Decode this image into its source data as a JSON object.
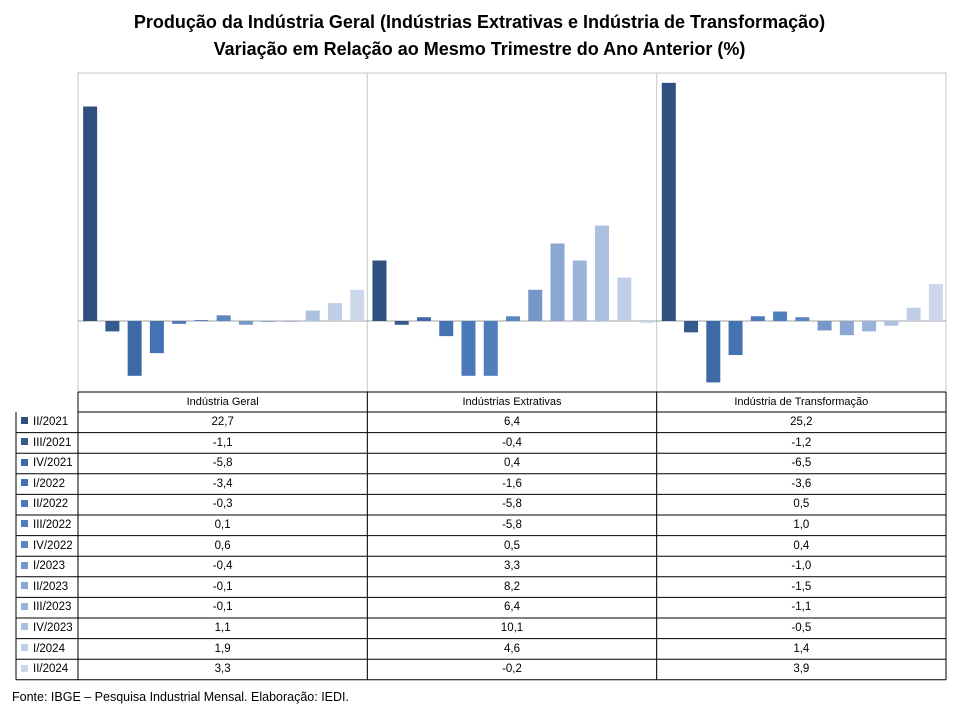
{
  "title": "Produção da Indústria Geral (Indústrias Extrativas e Indústria de Transformação)",
  "subtitle": "Variação em Relação ao Mesmo Trimestre do Ano Anterior (%)",
  "footer": "Fonte: IBGE – Pesquisa Industrial Mensal. Elaboração: IEDI.",
  "chart_data": {
    "type": "bar",
    "title": "Produção da Indústria Geral (Indústrias Extrativas e Indústria de Transformação)",
    "subtitle": "Variação em Relação ao Mesmo Trimestre do Ano Anterior (%)",
    "categories": [
      "Indústria Geral",
      "Indústrias Extrativas",
      "Indústria de Transformação"
    ],
    "series": [
      {
        "name": "II/2021",
        "color": "#2f4f7f",
        "values": [
          22.7,
          6.4,
          25.2
        ],
        "labels": [
          "22,7",
          "6,4",
          "25,2"
        ]
      },
      {
        "name": "III/2021",
        "color": "#355a8e",
        "values": [
          -1.1,
          -0.4,
          -1.2
        ],
        "labels": [
          "-1,1",
          "-0,4",
          "-1,2"
        ]
      },
      {
        "name": "IV/2021",
        "color": "#3d6aa6",
        "values": [
          -5.8,
          0.4,
          -6.5
        ],
        "labels": [
          "-5,8",
          "0,4",
          "-6,5"
        ]
      },
      {
        "name": "I/2022",
        "color": "#4572b3",
        "values": [
          -3.4,
          -1.6,
          -3.6
        ],
        "labels": [
          "-3,4",
          "-1,6",
          "-3,6"
        ]
      },
      {
        "name": "II/2022",
        "color": "#4a78b8",
        "values": [
          -0.3,
          -5.8,
          0.5
        ],
        "labels": [
          "-0,3",
          "-5,8",
          "0,5"
        ]
      },
      {
        "name": "III/2022",
        "color": "#4f7ebd",
        "values": [
          0.1,
          -5.8,
          1.0
        ],
        "labels": [
          "0,1",
          "-5,8",
          "1,0"
        ]
      },
      {
        "name": "IV/2022",
        "color": "#5b86c1",
        "values": [
          0.6,
          0.5,
          0.4
        ],
        "labels": [
          "0,6",
          "0,5",
          "0,4"
        ]
      },
      {
        "name": "I/2023",
        "color": "#7597c9",
        "values": [
          -0.4,
          3.3,
          -1.0
        ],
        "labels": [
          "-0,4",
          "3,3",
          "-1,0"
        ]
      },
      {
        "name": "II/2023",
        "color": "#8aa6d1",
        "values": [
          -0.1,
          8.2,
          -1.5
        ],
        "labels": [
          "-0,1",
          "8,2",
          "-1,5"
        ]
      },
      {
        "name": "III/2023",
        "color": "#9bb3d8",
        "values": [
          -0.1,
          6.4,
          -1.1
        ],
        "labels": [
          "-0,1",
          "6,4",
          "-1,1"
        ]
      },
      {
        "name": "IV/2023",
        "color": "#acc0df",
        "values": [
          1.1,
          10.1,
          -0.5
        ],
        "labels": [
          "1,1",
          "10,1",
          "-0,5"
        ]
      },
      {
        "name": "I/2024",
        "color": "#c0cfe7",
        "values": [
          1.9,
          4.6,
          1.4
        ],
        "labels": [
          "1,9",
          "4,6",
          "1,4"
        ]
      },
      {
        "name": "II/2024",
        "color": "#ccd7ec",
        "values": [
          3.3,
          -0.2,
          3.9
        ],
        "labels": [
          "3,3",
          "-0,2",
          "3,9"
        ]
      }
    ],
    "grid": false,
    "legend": "table-left"
  }
}
